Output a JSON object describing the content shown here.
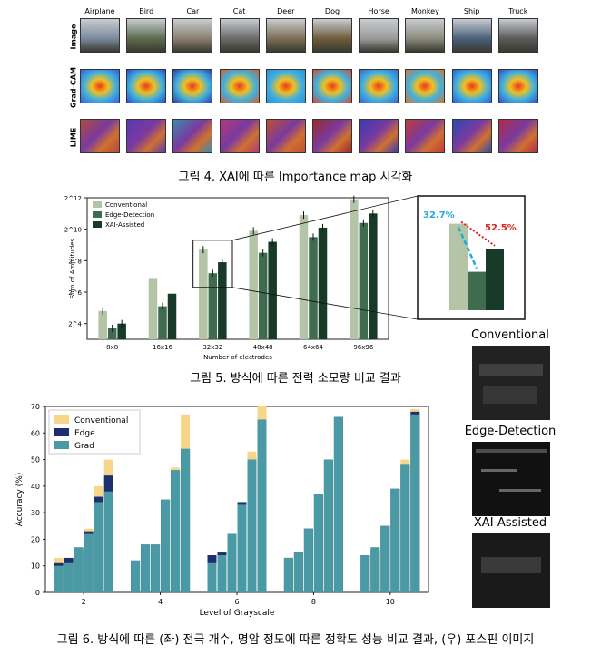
{
  "fig4": {
    "classes": [
      "Airplane",
      "Bird",
      "Car",
      "Cat",
      "Deer",
      "Dog",
      "Horse",
      "Monkey",
      "Ship",
      "Truck"
    ],
    "rows": [
      "Image",
      "Grad-CAM",
      "LIME"
    ],
    "caption": "그림 4. XAI에 따른 Importance map 시각화"
  },
  "fig5": {
    "caption": "그림 5. 방식에 따른 전력 소모량 비교 결과",
    "chart_data": {
      "type": "bar",
      "title": "",
      "xlabel": "Number of electrodes",
      "ylabel": "Sum of Amplitudes",
      "yscale": "log2",
      "ylim_exp": [
        3,
        12
      ],
      "yticks": [
        "2^4",
        "2^6",
        "2^8",
        "2^10",
        "2^12"
      ],
      "categories": [
        "8x8",
        "16x16",
        "32x32",
        "48x48",
        "64x64",
        "96x96"
      ],
      "series": [
        {
          "name": "Conventional",
          "color": "#b4c4a6",
          "log2_values": [
            4.8,
            6.9,
            8.7,
            9.9,
            10.9,
            11.9
          ]
        },
        {
          "name": "Edge-Detection",
          "color": "#3f6b4e",
          "log2_values": [
            3.7,
            5.1,
            7.2,
            8.5,
            9.5,
            10.4
          ]
        },
        {
          "name": "XAI-Assisted",
          "color": "#173b28",
          "log2_values": [
            4.0,
            5.9,
            7.9,
            9.2,
            10.1,
            11.0
          ]
        }
      ],
      "inset": {
        "labels": [
          "32.7%",
          "52.5%"
        ],
        "colors": [
          "#22aadd",
          "#dd2222"
        ]
      }
    }
  },
  "fig6": {
    "caption": "그림 6. 방식에 따른 (좌) 전극 개수, 명암 정도에 따른 정확도 성능 비교 결과, (우) 포스핀 이미지",
    "chart_data": {
      "type": "bar",
      "title": "",
      "xlabel": "Level of Grayscale",
      "ylabel": "Accuracy (%)",
      "ylim": [
        0,
        70
      ],
      "yticks": [
        0,
        10,
        20,
        30,
        40,
        50,
        60,
        70
      ],
      "categories": [
        "2",
        "4",
        "6",
        "8",
        "10"
      ],
      "series": [
        {
          "name": "Conventional",
          "color": "#f6d78a",
          "values": [
            [
              13,
              13,
              17,
              24,
              40,
              50
            ],
            [
              12,
              18,
              18,
              35,
              47,
              67
            ],
            [
              13,
              15,
              22,
              33,
              53,
              70
            ],
            [
              13,
              15,
              24,
              37,
              50,
              66
            ],
            [
              14,
              17,
              25,
              39,
              50,
              69
            ]
          ]
        },
        {
          "name": "Edge",
          "color": "#1c2f6e",
          "values": [
            [
              11,
              13,
              16,
              23,
              36,
              44
            ],
            [
              12,
              18,
              18,
              35,
              46,
              54
            ],
            [
              14,
              15,
              22,
              34,
              50,
              65
            ],
            [
              13,
              15,
              24,
              37,
              50,
              66
            ],
            [
              14,
              16,
              25,
              39,
              48,
              68
            ]
          ]
        },
        {
          "name": "Grad",
          "color": "#4a9aa5",
          "values": [
            [
              10,
              11,
              17,
              22,
              34,
              38
            ],
            [
              12,
              18,
              18,
              35,
              46,
              54
            ],
            [
              11,
              14,
              22,
              33,
              50,
              65
            ],
            [
              13,
              15,
              24,
              37,
              50,
              66
            ],
            [
              14,
              17,
              25,
              39,
              48,
              67
            ]
          ]
        }
      ]
    },
    "phosphene_titles": [
      "Conventional",
      "Edge-Detection",
      "XAI-Assisted"
    ]
  }
}
